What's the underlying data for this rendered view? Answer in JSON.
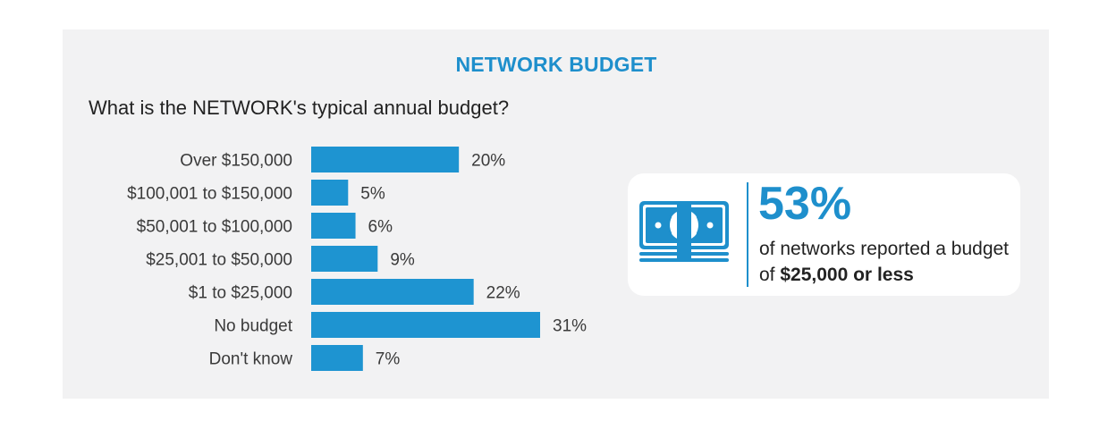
{
  "title": "NETWORK BUDGET",
  "question": "What is the NETWORK's typical annual budget?",
  "chart_data": {
    "type": "bar",
    "orientation": "horizontal",
    "categories": [
      "Over $150,000",
      "$100,001 to $150,000",
      "$50,001 to $100,000",
      "$25,001 to $50,000",
      "$1 to $25,000",
      "No budget",
      "Don't know"
    ],
    "values": [
      20,
      5,
      6,
      9,
      22,
      31,
      7
    ],
    "value_labels": [
      "20%",
      "5%",
      "6%",
      "9%",
      "22%",
      "31%",
      "7%"
    ],
    "unit": "%",
    "xlim": [
      0,
      31
    ],
    "grid": false,
    "bar_color": "#1e94d1"
  },
  "callout": {
    "percent": "53%",
    "text_prefix": "of networks reported a budget of ",
    "text_bold": "$25,000 or less",
    "icon": "money-icon"
  },
  "colors": {
    "accent": "#1e8fcc",
    "panel_bg": "#f2f2f3"
  }
}
